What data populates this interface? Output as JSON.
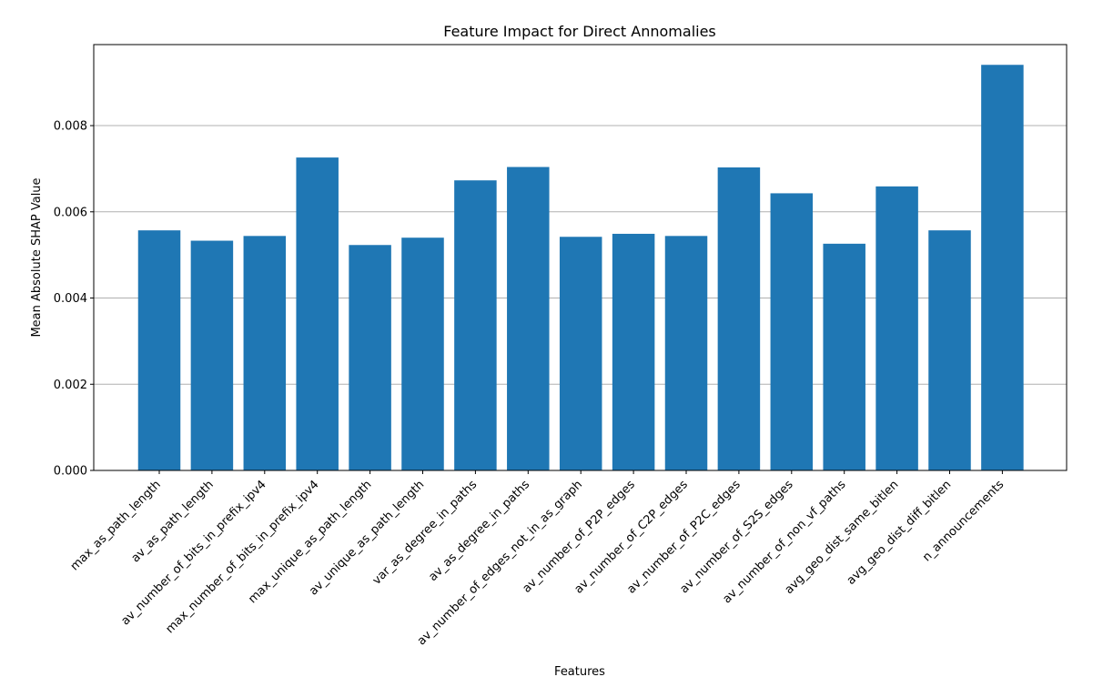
{
  "chart_data": {
    "type": "bar",
    "title": "Feature Impact for Direct Annomalies",
    "xlabel": "Features",
    "ylabel": "Mean Absolute SHAP Value",
    "categories": [
      "max_as_path_length",
      "av_as_path_length",
      "av_number_of_bits_in_prefix_ipv4",
      "max_number_of_bits_in_prefix_ipv4",
      "max_unique_as_path_length",
      "av_unique_as_path_length",
      "var_as_degree_in_paths",
      "av_as_degree_in_paths",
      "av_number_of_edges_not_in_as_graph",
      "av_number_of_P2P_edges",
      "av_number_of_C2P_edges",
      "av_number_of_P2C_edges",
      "av_number_of_S2S_edges",
      "av_number_of_non_vf_paths",
      "avg_geo_dist_same_bitlen",
      "avg_geo_dist_diff_bitlen",
      "n_announcements"
    ],
    "values": [
      0.00557,
      0.00533,
      0.00544,
      0.00726,
      0.00523,
      0.0054,
      0.00673,
      0.00704,
      0.00542,
      0.00549,
      0.00544,
      0.00703,
      0.00643,
      0.00526,
      0.00659,
      0.00557,
      0.00941
    ],
    "ylim": [
      0,
      0.00988
    ],
    "yticks": [
      "0.000",
      "0.002",
      "0.004",
      "0.006",
      "0.008"
    ],
    "ytick_values": [
      0,
      0.002,
      0.004,
      0.006,
      0.008
    ],
    "grid": "y",
    "bar_color": "#1f77b4",
    "grid_color": "#b0b0b0"
  }
}
